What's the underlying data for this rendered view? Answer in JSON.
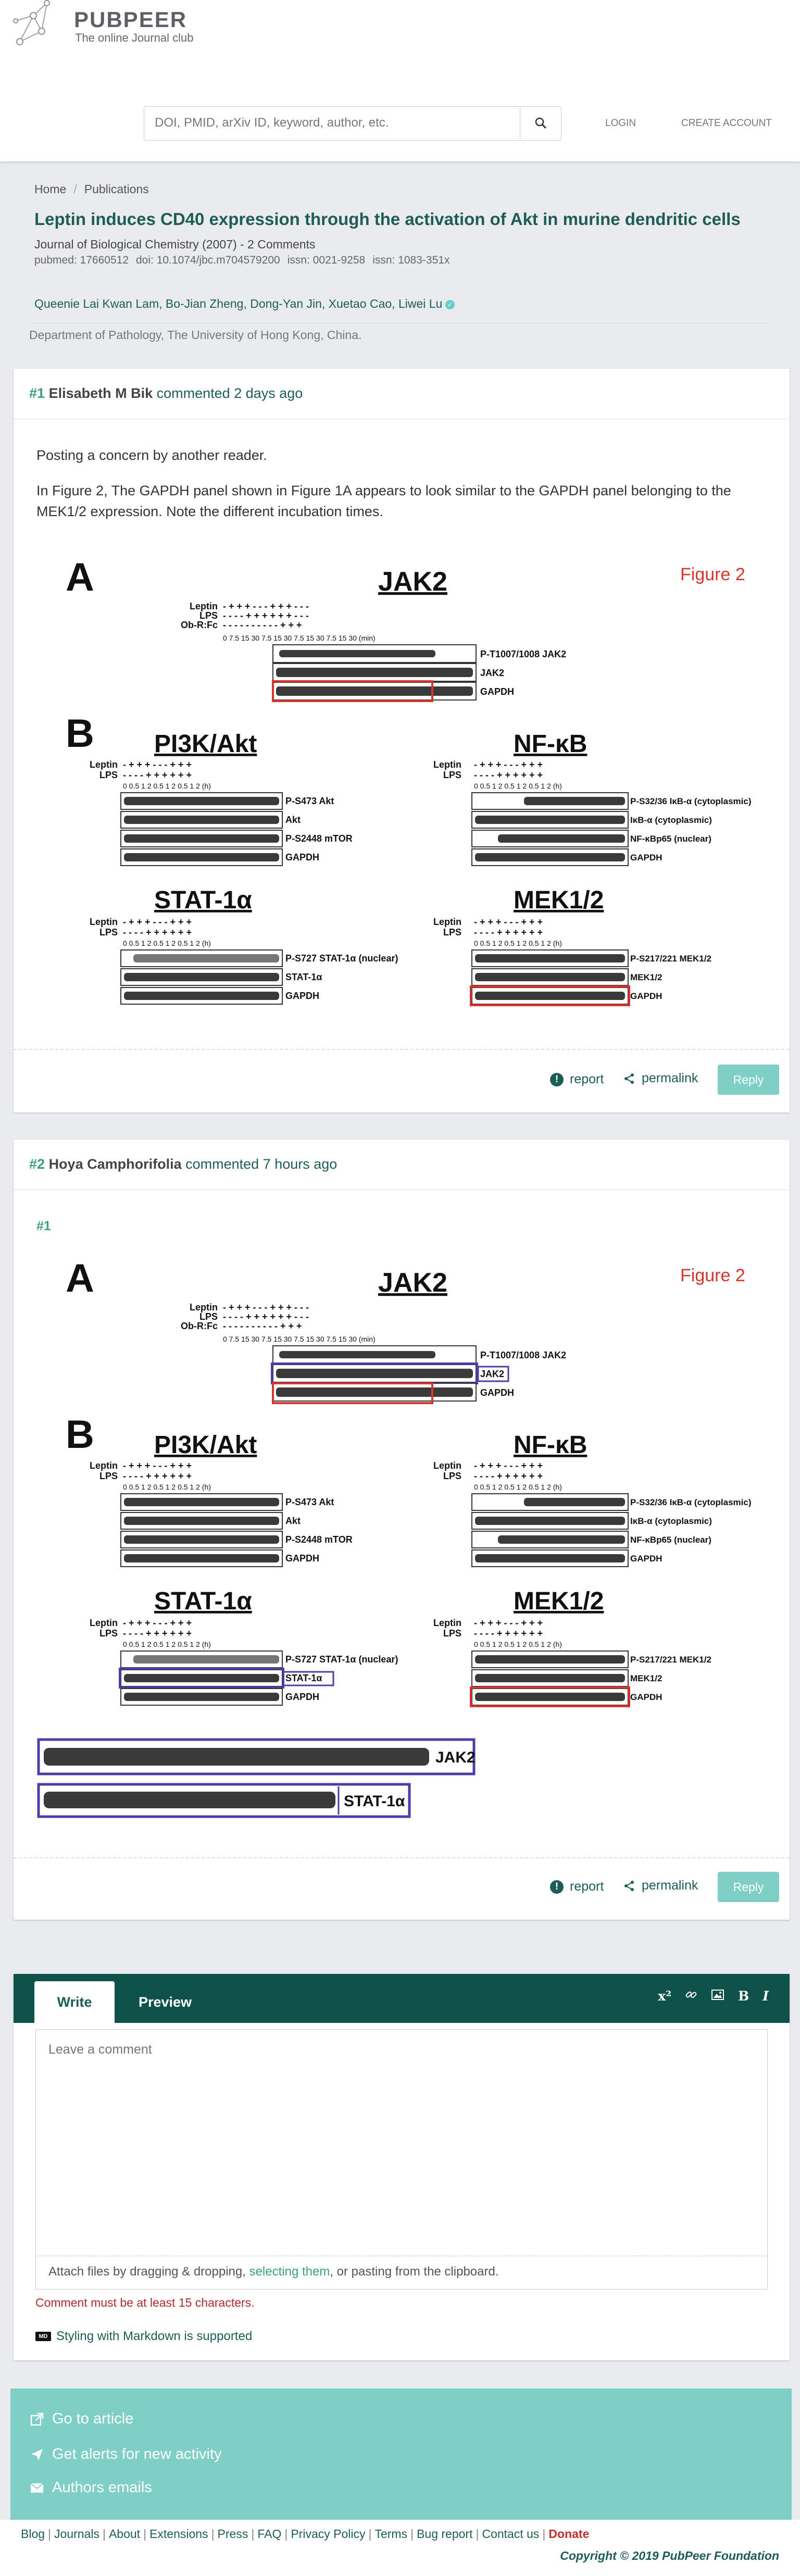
{
  "header": {
    "logo_title": "PUBPEER",
    "logo_subtitle": "The online Journal club",
    "search_placeholder": "DOI, PMID, arXiv ID, keyword, author, etc.",
    "login_label": "LOGIN",
    "create_account_label": "CREATE ACCOUNT"
  },
  "breadcrumb": {
    "home": "Home",
    "publications": "Publications"
  },
  "article": {
    "title": "Leptin induces CD40 expression through the activation of Akt in murine dendritic cells",
    "journal": "Journal of Biological Chemistry (2007) - 2 Comments",
    "pubmed": "pubmed: 17660512",
    "doi": "doi: 10.1074/jbc.m704579200",
    "issn1": "issn: 0021-9258",
    "issn2": "issn: 1083-351x",
    "authors": "Queenie Lai Kwan Lam, Bo-Jian Zheng, Dong-Yan Jin, Xuetao Cao, Liwei Lu",
    "affiliation": "Department of Pathology, The University of Hong Kong, China."
  },
  "comments": [
    {
      "number": "#1",
      "author": "Elisabeth M Bik",
      "verb": "commented",
      "time": "2 days ago",
      "body1": "Posting a concern by another reader.",
      "body2": "In Figure 2, The GAPDH panel shown in Figure 1A appears to look similar to the GAPDH panel belonging to the MEK1/2 expression. Note the different incubation times.",
      "report": "report",
      "permalink": "permalink",
      "reply": "Reply"
    },
    {
      "number": "#2",
      "author": "Hoya Camphorifolia",
      "verb": "commented",
      "time": "7 hours ago",
      "quote_ref": "#1",
      "report": "report",
      "permalink": "permalink",
      "reply": "Reply"
    }
  ],
  "figure": {
    "panel_a": "A",
    "panel_b": "B",
    "fig_label": "Figure 2",
    "jak2_title": "JAK2",
    "pi3k_title": "PI3K/Akt",
    "nfkb_title": "NF-κB",
    "stat_title": "STAT-1α",
    "mek_title": "MEK1/2",
    "row_leptin": "Leptin",
    "row_lps": "LPS",
    "row_obr": "Ob-R:Fc",
    "jak2_times": "0  7.5  15  30  7.5  15  30  7.5  15  30  7.5  15  30  (min)",
    "b_times": "0  0.5  1   2  0.5  1   2  0.5  1   2  (h)",
    "jak2_bands": [
      "P-T1007/1008 JAK2",
      "JAK2",
      "GAPDH"
    ],
    "pi3k_bands": [
      "P-S473 Akt",
      "Akt",
      "P-S2448 mTOR",
      "GAPDH"
    ],
    "nfkb_bands": [
      "P-S32/36 IκB-α (cytoplasmic)",
      "IκB-α (cytoplasmic)",
      "NF-κBp65 (nuclear)",
      "GAPDH"
    ],
    "stat_bands": [
      "P-S727 STAT-1α (nuclear)",
      "STAT-1α",
      "GAPDH"
    ],
    "mek_bands": [
      "P-S217/221 MEK1/2",
      "MEK1/2",
      "GAPDH"
    ],
    "signs_lep": "-  +  +  +  -  -  -  +  +  +  -  -  -",
    "signs_lps": "-  -  -  -  +  +  +  +  +  +  -  -  -",
    "signs_obr": "-  -  -  -  -  -  -  -  -  -  +  +  +",
    "b_signs_lep": "-  +  +  +  -  -  -  +  +  +",
    "b_signs_lps": "-  -  -  -  +  +  +  +  +  +",
    "zoom_jak2": "JAK2",
    "zoom_stat": "STAT-1α"
  },
  "editor": {
    "tab_write": "Write",
    "tab_preview": "Preview",
    "placeholder": "Leave a comment",
    "attach_pre": "Attach files by dragging & dropping, ",
    "attach_link": "selecting them",
    "attach_post": ", or pasting from the clipboard.",
    "error": "Comment must be at least 15 characters.",
    "markdown": "Styling with Markdown is supported",
    "md_badge": "MD",
    "tool_sup": "x²",
    "tool_bold": "B",
    "tool_italic": "I"
  },
  "footer": {
    "go_to_article": "Go to article",
    "alerts": "Get alerts for new activity",
    "authors_emails": "Authors emails",
    "links": [
      "Blog",
      "Journals",
      "About",
      "Extensions",
      "Press",
      "FAQ",
      "Privacy Policy",
      "Terms",
      "Bug report",
      "Contact us"
    ],
    "donate": "Donate",
    "copyright": "Copyright © 2019 PubPeer Foundation"
  },
  "colors": {
    "brand": "#1e5d56",
    "accent": "#3a9e80",
    "footer": "#7fcfc6",
    "editor_bar": "#0e5148",
    "error": "#b3292d",
    "highlight_red": "#d9342b",
    "highlight_blue": "#4a3fa8"
  }
}
